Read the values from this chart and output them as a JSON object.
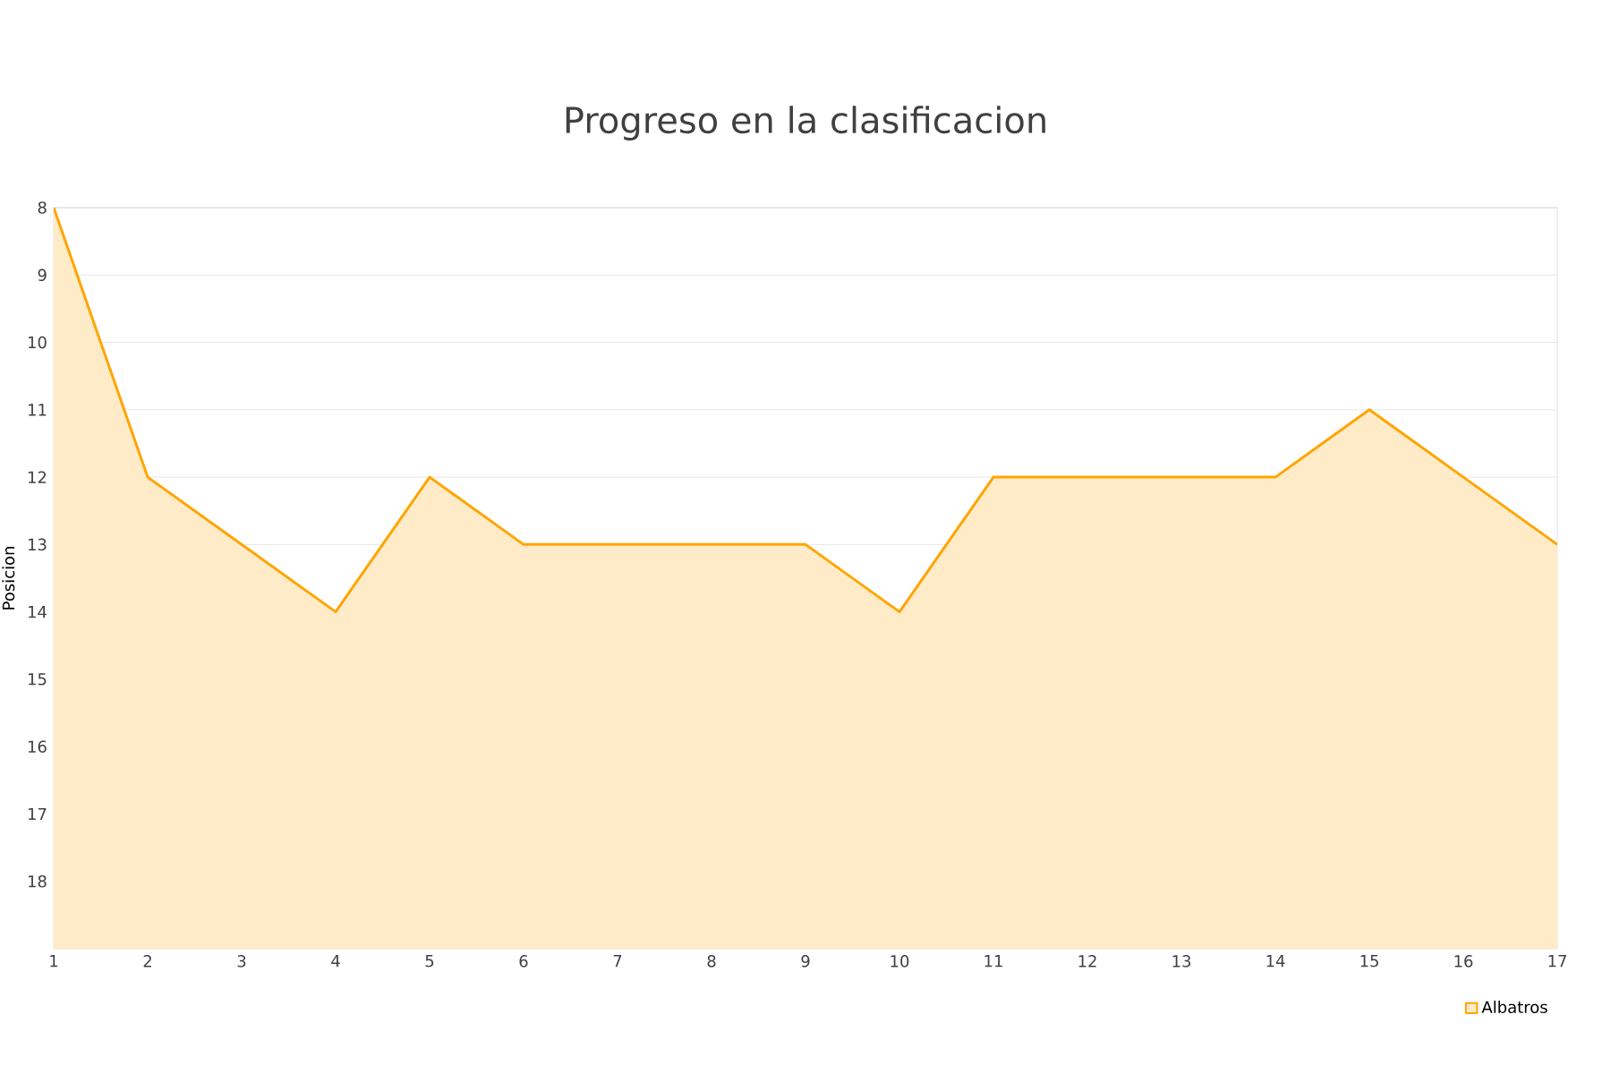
{
  "chart_data": {
    "type": "area",
    "title": "Progreso en la clasificacion",
    "ylabel": "Posicion",
    "x": [
      1,
      2,
      3,
      4,
      5,
      6,
      7,
      8,
      9,
      10,
      11,
      12,
      13,
      14,
      15,
      16,
      17
    ],
    "series": [
      {
        "name": "Albatros",
        "color": "#ffa500",
        "values": [
          8,
          12,
          13,
          14,
          12,
          13,
          13,
          13,
          13,
          14,
          12,
          12,
          12,
          12,
          11,
          12,
          13
        ]
      }
    ],
    "xlim": [
      1,
      17
    ],
    "xticks": [
      1,
      2,
      3,
      4,
      5,
      6,
      7,
      8,
      9,
      10,
      11,
      12,
      13,
      14,
      15,
      16,
      17
    ],
    "ylim": [
      19,
      8
    ],
    "yticks": [
      8,
      9,
      10,
      11,
      12,
      13,
      14,
      15,
      16,
      17,
      18
    ],
    "grid": "y",
    "legend": "bottom right",
    "marker": "none",
    "line_style": "solid"
  }
}
